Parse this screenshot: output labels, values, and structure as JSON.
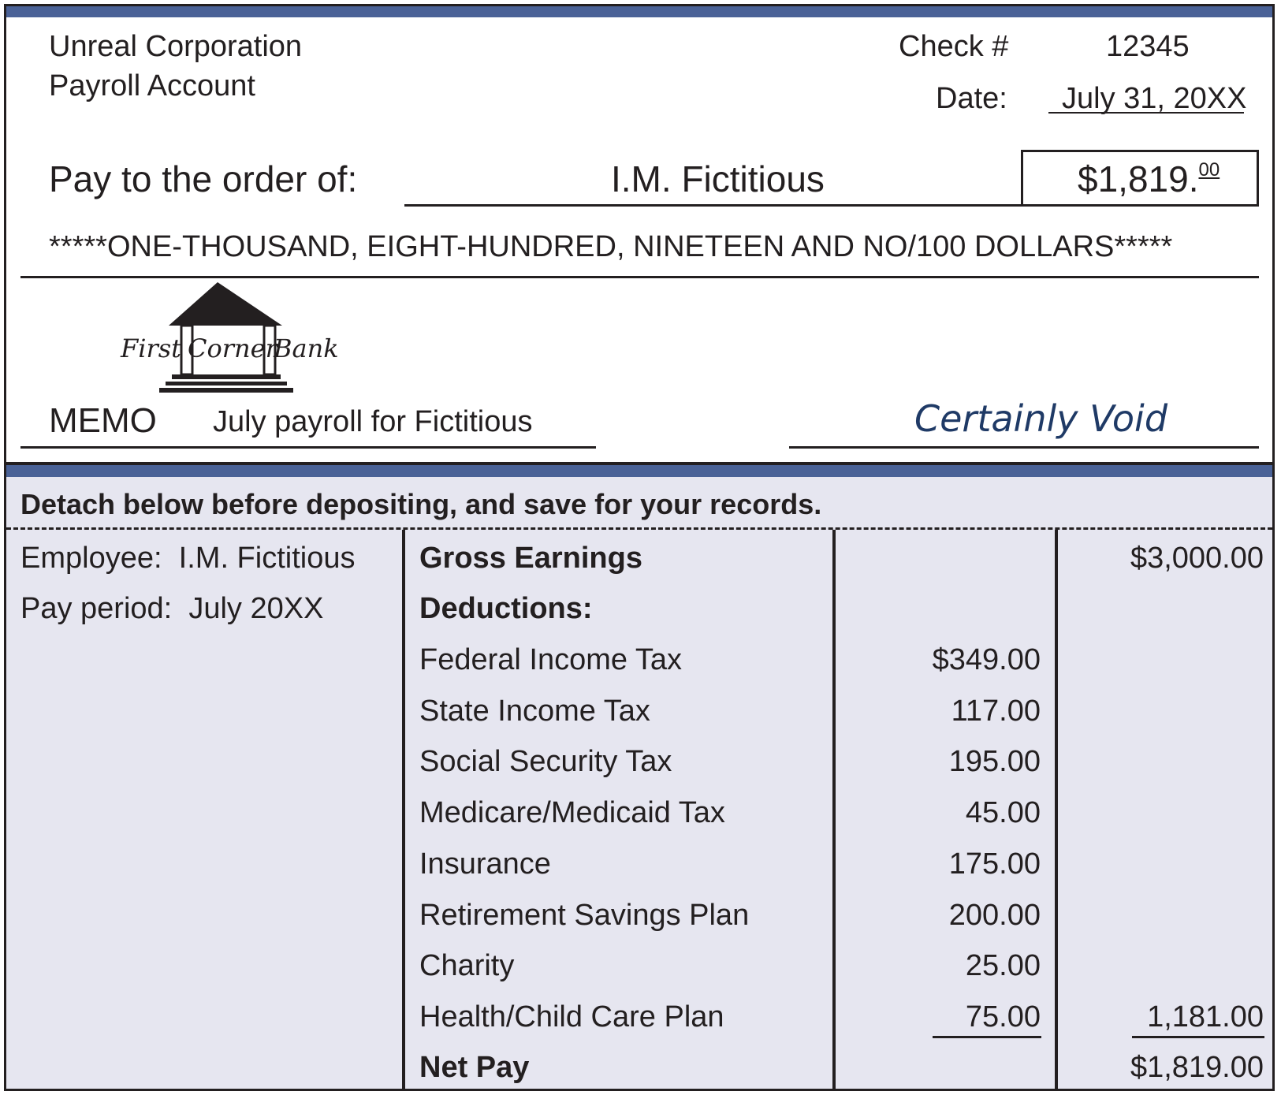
{
  "check": {
    "company_name": "Unreal Corporation",
    "account_name": "Payroll Account",
    "check_label": "Check #",
    "check_number": "12345",
    "date_label": "Date:",
    "date_value": "July 31, 20XX",
    "pay_to_label": "Pay to the order of:",
    "payee": "I.M. Fictitious",
    "amount_main": "$1,819.",
    "amount_cents": "00",
    "amount_words": "*****ONE-THOUSAND, EIGHT-HUNDRED, NINETEEN AND NO/100 DOLLARS*****",
    "bank_logo": {
      "word1": "First",
      "word2": "Corner",
      "word3": "Bank"
    },
    "memo_label": "MEMO",
    "memo_text": "July payroll for Fictitious",
    "signature": "Certainly Void"
  },
  "stub": {
    "detach_note": "Detach below before depositing, and save for your records.",
    "employee_label": "Employee:",
    "employee_name": "I.M. Fictitious",
    "pay_period_label": "Pay period:",
    "pay_period_value": "July 20XX",
    "gross_earnings_label": "Gross Earnings",
    "gross_earnings_value": "$3,000.00",
    "deductions_label": "Deductions:",
    "deductions": [
      {
        "label": "Federal Income Tax",
        "amount": "$349.00"
      },
      {
        "label": "State Income Tax",
        "amount": "117.00"
      },
      {
        "label": "Social Security Tax",
        "amount": "195.00"
      },
      {
        "label": "Medicare/Medicaid Tax",
        "amount": "45.00"
      },
      {
        "label": "Insurance",
        "amount": "175.00"
      },
      {
        "label": "Retirement Savings Plan",
        "amount": "200.00"
      },
      {
        "label": "Charity",
        "amount": "25.00"
      },
      {
        "label": "Health/Child Care Plan",
        "amount": "75.00"
      }
    ],
    "total_deductions": "1,181.00",
    "net_pay_label": "Net Pay",
    "net_pay_value": "$1,819.00"
  },
  "colors": {
    "band": "#4a6297",
    "stub_background": "#e6e6f0",
    "signature": "#1f3a66",
    "ink": "#231f20"
  }
}
